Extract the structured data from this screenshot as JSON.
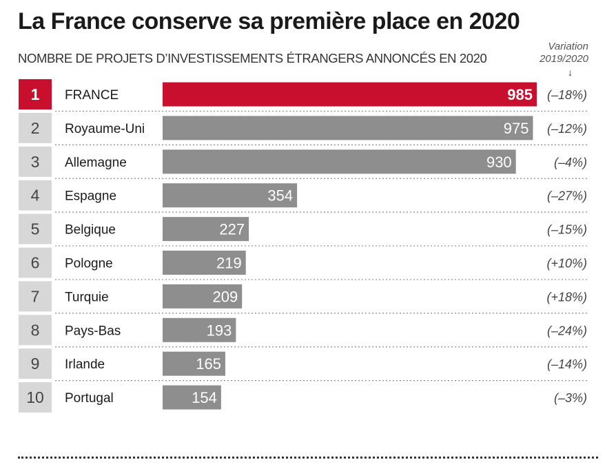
{
  "title": "La France conserve sa première place en 2020",
  "subtitle": "NOMBRE DE PROJETS D’INVESTISSEMENTS ÉTRANGERS ANNONCÉS EN 2020",
  "variation_header": {
    "line1": "Variation",
    "line2": "2019/2020",
    "arrow": "↓"
  },
  "colors": {
    "highlight": "#c8102e",
    "bar": "#8e8e8e",
    "rank_box": "#d7d7d7"
  },
  "chart_data": {
    "type": "bar",
    "orientation": "horizontal",
    "title": "La France conserve sa première place en 2020",
    "subtitle": "NOMBRE DE PROJETS D’INVESTISSEMENTS ÉTRANGERS ANNONCÉS EN 2020",
    "ranks": [
      "1",
      "2",
      "3",
      "4",
      "5",
      "6",
      "7",
      "8",
      "9",
      "10"
    ],
    "categories": [
      "FRANCE",
      "Royaume-Uni",
      "Allemagne",
      "Espagne",
      "Belgique",
      "Pologne",
      "Turquie",
      "Pays-Bas",
      "Irlande",
      "Portugal"
    ],
    "values": [
      985,
      975,
      930,
      354,
      227,
      219,
      209,
      193,
      165,
      154
    ],
    "variation": [
      "(–18%)",
      "(–12%)",
      "(–4%)",
      "(–27%)",
      "(–15%)",
      "(+10%)",
      "(+18%)",
      "(–24%)",
      "(–14%)",
      "(–3%)"
    ],
    "highlight_index": 0,
    "xlim": [
      0,
      985
    ],
    "grid": false,
    "legend": "none"
  }
}
